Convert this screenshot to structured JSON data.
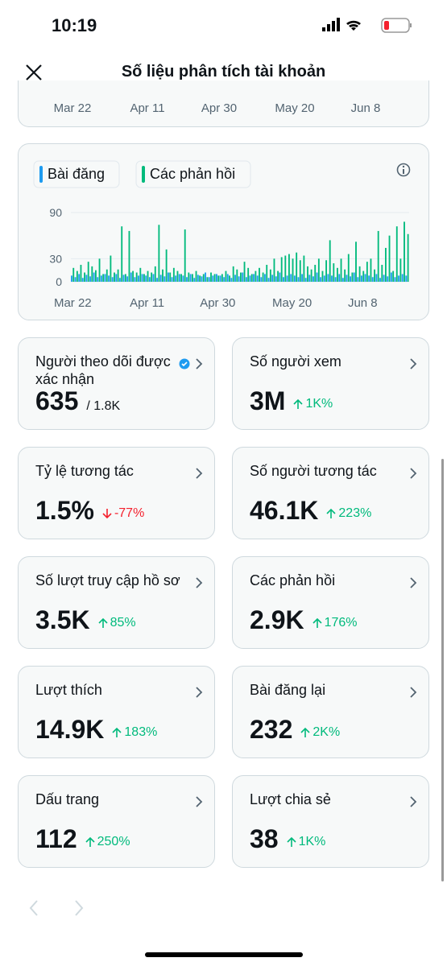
{
  "status_bar": {
    "time": "10:19"
  },
  "header": {
    "title": "Số liệu phân tích tài khoản"
  },
  "top_chart_labels": [
    "Mar 22",
    "Apr 11",
    "Apr 30",
    "May 20",
    "Jun 8"
  ],
  "chart_data": {
    "type": "bar",
    "categories": [
      "Mar 22",
      null,
      null,
      null,
      null,
      null,
      null,
      null,
      null,
      null,
      null,
      null,
      null,
      null,
      null,
      null,
      null,
      null,
      null,
      null,
      "Apr 11",
      null,
      null,
      null,
      null,
      null,
      null,
      null,
      null,
      null,
      null,
      null,
      null,
      null,
      null,
      null,
      null,
      null,
      null,
      "Apr 30",
      null,
      null,
      null,
      null,
      null,
      null,
      null,
      null,
      null,
      null,
      null,
      null,
      null,
      null,
      null,
      null,
      null,
      null,
      null,
      "May 20",
      null,
      null,
      null,
      null,
      null,
      null,
      null,
      null,
      null,
      null,
      null,
      null,
      null,
      null,
      null,
      null,
      null,
      null,
      "Jun 8",
      null,
      null,
      null,
      null,
      null,
      null,
      null,
      null,
      null,
      null,
      null,
      null
    ],
    "series": [
      {
        "name": "Bài đăng",
        "color": "#1d9bf0",
        "values": [
          8,
          6,
          10,
          5,
          9,
          7,
          12,
          6,
          8,
          10,
          8,
          6,
          10,
          5,
          9,
          7,
          12,
          6,
          8,
          10,
          8,
          6,
          10,
          5,
          9,
          7,
          12,
          6,
          8,
          10,
          8,
          6,
          10,
          5,
          9,
          7,
          12,
          6,
          8,
          10,
          8,
          6,
          10,
          5,
          9,
          7,
          12,
          6,
          8,
          10,
          8,
          6,
          10,
          5,
          9,
          7,
          12,
          6,
          8,
          10,
          8,
          6,
          10,
          5,
          9,
          7,
          12,
          6,
          8,
          10,
          8,
          6,
          10,
          5,
          9,
          7,
          12,
          6,
          8,
          10,
          8,
          6,
          10,
          5,
          9,
          7,
          12,
          6,
          8,
          10,
          8
        ]
      },
      {
        "name": "Các phản hồi",
        "color": "#00ba7c",
        "values": [
          18,
          14,
          22,
          12,
          26,
          20,
          15,
          30,
          10,
          16,
          34,
          12,
          16,
          72,
          10,
          66,
          14,
          12,
          18,
          10,
          14,
          12,
          20,
          74,
          16,
          42,
          12,
          18,
          14,
          10,
          68,
          12,
          10,
          14,
          8,
          10,
          6,
          12,
          10,
          8,
          10,
          14,
          8,
          20,
          16,
          12,
          26,
          18,
          10,
          14,
          18,
          12,
          22,
          16,
          30,
          14,
          32,
          34,
          36,
          30,
          38,
          28,
          34,
          20,
          16,
          22,
          30,
          14,
          28,
          54,
          24,
          18,
          30,
          16,
          36,
          12,
          52,
          20,
          14,
          26,
          30,
          16,
          66,
          22,
          44,
          60,
          14,
          72,
          30,
          78,
          62
        ]
      }
    ],
    "ylim": [
      0,
      90
    ],
    "yticks": [
      0,
      30,
      90
    ],
    "grid": true
  },
  "metrics": [
    {
      "title": "Người theo dõi được xác nhận",
      "value": "635",
      "total": "/ 1.8K",
      "verified": true
    },
    {
      "title": "Số người xem",
      "value": "3M",
      "change": "1K%",
      "direction": "up"
    },
    {
      "title": "Tỷ lệ tương tác",
      "value": "1.5%",
      "change": "-77%",
      "direction": "down"
    },
    {
      "title": "Số người tương tác",
      "value": "46.1K",
      "change": "223%",
      "direction": "up"
    },
    {
      "title": "Số lượt truy cập hồ sơ",
      "value": "3.5K",
      "change": "85%",
      "direction": "up"
    },
    {
      "title": "Các phản hồi",
      "value": "2.9K",
      "change": "176%",
      "direction": "up"
    },
    {
      "title": "Lượt thích",
      "value": "14.9K",
      "change": "183%",
      "direction": "up"
    },
    {
      "title": "Bài đăng lại",
      "value": "232",
      "change": "2K%",
      "direction": "up"
    },
    {
      "title": "Dấu trang",
      "value": "112",
      "change": "250%",
      "direction": "up"
    },
    {
      "title": "Lượt chia sẻ",
      "value": "38",
      "change": "1K%",
      "direction": "up"
    }
  ]
}
